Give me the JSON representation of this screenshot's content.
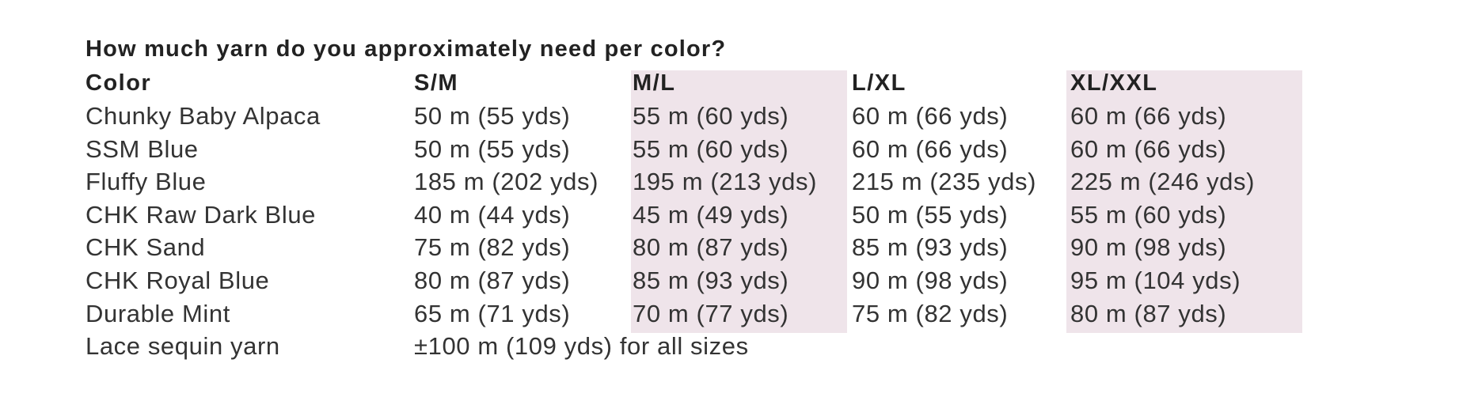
{
  "title": "How much yarn do you approximately need per color?",
  "highlight_color": "#efe4ea",
  "headers": [
    "Color",
    "S/M",
    "M/L",
    "L/XL",
    "XL/XXL"
  ],
  "rows": [
    [
      "Chunky Baby Alpaca",
      "50 m (55 yds)",
      "55 m (60 yds)",
      "60 m (66 yds)",
      "60 m (66 yds)"
    ],
    [
      "SSM Blue",
      "50 m (55 yds)",
      "55 m (60 yds)",
      "60 m (66 yds)",
      "60 m (66 yds)"
    ],
    [
      "Fluffy Blue",
      "185 m (202 yds)",
      "195 m (213 yds)",
      "215 m (235 yds)",
      "225 m (246 yds)"
    ],
    [
      "CHK Raw Dark Blue",
      "40 m (44 yds)",
      "45 m (49 yds)",
      "50 m (55 yds)",
      "55 m (60 yds)"
    ],
    [
      "CHK Sand",
      "75 m (82 yds)",
      "80 m (87 yds)",
      "85 m (93 yds)",
      "90 m (98 yds)"
    ],
    [
      "CHK Royal Blue",
      "80 m (87 yds)",
      "85 m (93 yds)",
      "90 m (98 yds)",
      "95 m (104 yds)"
    ],
    [
      "Durable Mint",
      "65 m (71 yds)",
      "70 m (77 yds)",
      "75 m (82 yds)",
      "80 m (87 yds)"
    ]
  ],
  "footer_row": [
    "Lace sequin yarn",
    "±100 m (109 yds) for all sizes"
  ]
}
